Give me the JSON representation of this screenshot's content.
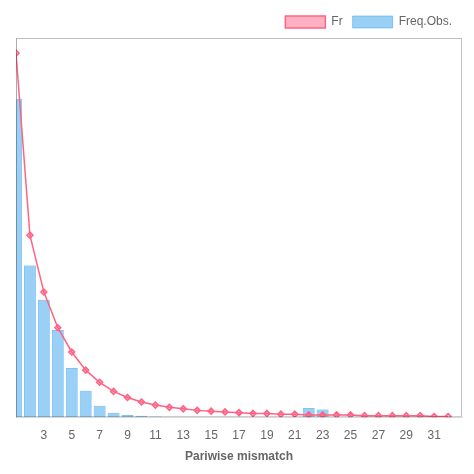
{
  "chart_data": {
    "type": "bar",
    "xlabel": "Pariwise mismatch",
    "x": [
      1,
      2,
      3,
      4,
      5,
      6,
      7,
      8,
      9,
      10,
      11,
      12,
      13,
      14,
      15,
      16,
      17,
      18,
      19,
      20,
      21,
      22,
      23,
      24,
      25,
      26,
      27,
      28,
      29,
      30,
      31,
      32
    ],
    "series": [
      {
        "name": "Freq.Obs.",
        "type": "bar",
        "values": [
          0.42,
          0.2,
          0.155,
          0.115,
          0.065,
          0.035,
          0.015,
          0.006,
          0.003,
          0.002,
          0.001,
          0.0,
          0.0,
          0.0,
          0.0,
          0.0,
          0.0,
          0.0,
          0.0,
          0.0,
          0.0,
          0.012,
          0.01,
          0.0,
          0.0,
          0.0,
          0.0,
          0.0,
          0.0,
          0.0,
          0.0,
          0.0
        ]
      },
      {
        "name": "Fr",
        "type": "line",
        "marker": "diamond",
        "line_style": "solid",
        "values": [
          0.48,
          0.24,
          0.165,
          0.118,
          0.086,
          0.062,
          0.046,
          0.034,
          0.026,
          0.02,
          0.016,
          0.013,
          0.011,
          0.009,
          0.008,
          0.007,
          0.006,
          0.005,
          0.005,
          0.004,
          0.004,
          0.003,
          0.003,
          0.003,
          0.003,
          0.002,
          0.002,
          0.002,
          0.002,
          0.002,
          0.001,
          0.001
        ]
      }
    ],
    "xlim": [
      1,
      33
    ],
    "xticks": [
      3,
      5,
      7,
      9,
      11,
      13,
      15,
      17,
      19,
      21,
      23,
      25,
      27,
      29,
      31
    ],
    "ylim": [
      0,
      0.5
    ],
    "tick_labels": "x",
    "grid": false,
    "legend": "upper right"
  }
}
